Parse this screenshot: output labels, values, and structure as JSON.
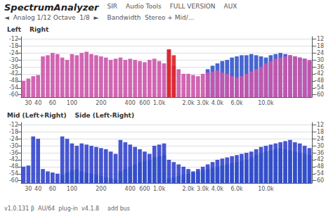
{
  "chart_data": [
    {
      "type": "bar",
      "title": "SpectrumAnalyzer",
      "annotations": [
        "SIR",
        "Audio Tools",
        "FULL VERSION",
        "AUX",
        "◄  Analog 1/12 Octave  1/8  ►",
        "Bandwidth  Stereo + Mid/..."
      ],
      "subtitle": [
        "Left",
        "Right"
      ],
      "categories": [
        null,
        "30",
        null,
        "40",
        null,
        null,
        "60",
        null,
        null,
        null,
        "100",
        null,
        null,
        null,
        null,
        null,
        "200",
        null,
        null,
        null,
        null,
        null,
        "400",
        null,
        null,
        "600",
        null,
        null,
        "1.0k",
        null,
        null,
        null,
        null,
        null,
        "2.0k",
        null,
        null,
        "3.0k",
        null,
        null,
        "4.0k",
        null,
        null,
        null,
        "6.0k",
        null,
        null,
        null,
        null,
        null,
        "10.0k",
        null,
        null,
        null,
        null,
        null,
        null,
        null,
        null,
        null
      ],
      "ylim": [
        -62,
        -10
      ],
      "yticks": [
        -12,
        -18,
        -24,
        -30,
        -36,
        -42,
        -48,
        -54,
        -60
      ],
      "grid": true,
      "series": [
        {
          "color": "#3355cc",
          "values": [
            -62,
            -62,
            -62,
            -62,
            -62,
            -62,
            -62,
            -62,
            -62,
            -62,
            -62,
            -62,
            -62,
            -62,
            -62,
            -62,
            -62,
            -62,
            -62,
            -62,
            -62,
            -62,
            -62,
            -62,
            -62,
            -62,
            -62,
            -62,
            -62,
            -62,
            -62,
            -62,
            -62,
            -62,
            -62,
            -62,
            -62,
            -62,
            -38,
            -35,
            -33,
            -31,
            -30,
            -28,
            -27,
            -26,
            -26,
            -25,
            -26,
            -27,
            -28,
            -26,
            -25,
            -24,
            -25,
            -26,
            -27,
            -28,
            -29,
            -31
          ]
        },
        {
          "color": "#cc55aa",
          "values": [
            -48,
            -46,
            -44,
            -43,
            -27,
            -26,
            -24,
            -25,
            -28,
            -30,
            -25,
            -26,
            -24,
            -23,
            -25,
            -26,
            -27,
            -28,
            -30,
            -29,
            -28,
            -30,
            -29,
            -30,
            -31,
            -32,
            -30,
            -29,
            -31,
            -33,
            -21,
            -35,
            -38,
            -42,
            -42,
            -43,
            -44,
            -42,
            -41,
            -40,
            -39,
            -41,
            -42,
            -44,
            -45,
            -44,
            -42,
            -40,
            -38,
            -36,
            -33,
            -31,
            -29,
            -28,
            -27,
            -26,
            -27,
            -28,
            -29,
            -30
          ]
        },
        {
          "color": "#dd2222",
          "values": [
            null,
            null,
            null,
            null,
            null,
            null,
            null,
            null,
            null,
            null,
            null,
            null,
            null,
            null,
            null,
            null,
            null,
            null,
            null,
            null,
            null,
            null,
            null,
            null,
            null,
            null,
            null,
            null,
            null,
            null,
            -21,
            -26,
            null,
            null,
            null,
            null,
            null,
            null,
            null,
            null,
            null,
            null,
            null,
            null,
            null,
            null,
            null,
            null,
            null,
            null,
            null,
            null,
            null,
            null,
            null,
            null,
            null,
            null,
            null,
            null
          ]
        }
      ]
    },
    {
      "type": "bar",
      "subtitle": [
        "Mid (Left+Right)",
        "Side (Left-Right)"
      ],
      "annotations": [
        "v1.0.131 β  AU/64  plug-in  v4.1.8",
        "add bus"
      ],
      "categories": [
        null,
        "30",
        null,
        "40",
        null,
        null,
        "60",
        null,
        null,
        null,
        "100",
        null,
        null,
        null,
        null,
        null,
        "200",
        null,
        null,
        null,
        null,
        null,
        "400",
        null,
        null,
        "600",
        null,
        null,
        "1.0k",
        null,
        null,
        null,
        null,
        null,
        "2.0k",
        null,
        null,
        "3.0k",
        null,
        null,
        "4.0k",
        null,
        null,
        null,
        "6.0k",
        null,
        null,
        null,
        null,
        null,
        "10.0k",
        null,
        null,
        null,
        null,
        null,
        null,
        null,
        null,
        null
      ],
      "ylim": [
        -62,
        -10
      ],
      "yticks": [
        -12,
        -18,
        -24,
        -30,
        -36,
        -42,
        -48,
        -54,
        -60
      ],
      "grid": true,
      "series": [
        {
          "color": "#3399bb",
          "values": [
            -62,
            -62,
            -62,
            -62,
            -62,
            -62,
            -62,
            -62,
            -55,
            -53,
            -51,
            -50,
            -52,
            -53,
            -54,
            -55,
            -56,
            -57,
            -58,
            -59,
            -52,
            -50,
            -48,
            -46,
            -44,
            -43,
            -42,
            -40,
            -39,
            -38,
            -58,
            -57,
            -56,
            -55,
            -54,
            -53,
            -52,
            -51,
            -50,
            -49,
            -48,
            -47,
            -46,
            -45,
            -44,
            -43,
            -42,
            -40,
            -38,
            -36,
            -35,
            -34,
            -33,
            -32,
            -33,
            -34,
            -35,
            -36,
            -37,
            -38
          ]
        },
        {
          "color": "#3344cc",
          "values": [
            -48,
            -47,
            -22,
            -24,
            -50,
            -52,
            -53,
            -54,
            -22,
            -24,
            -28,
            -30,
            -28,
            -29,
            -30,
            -31,
            -32,
            -33,
            -35,
            -37,
            -25,
            -27,
            -29,
            -31,
            -33,
            -35,
            -37,
            -30,
            -29,
            -28,
            -42,
            -44,
            -46,
            -48,
            -50,
            -52,
            -50,
            -48,
            -46,
            -44,
            -42,
            -41,
            -40,
            -39,
            -38,
            -37,
            -36,
            -35,
            -33,
            -31,
            -30,
            -29,
            -28,
            -27,
            -26,
            -25,
            -27,
            -28,
            -30,
            -32
          ]
        }
      ]
    }
  ]
}
